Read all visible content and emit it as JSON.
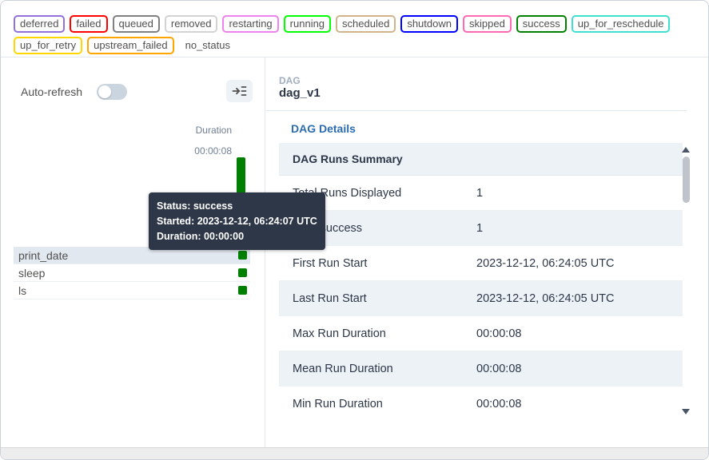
{
  "legend": {
    "badges": [
      {
        "label": "deferred",
        "color": "#9370DB"
      },
      {
        "label": "failed",
        "color": "#FF0000"
      },
      {
        "label": "queued",
        "color": "#808080"
      },
      {
        "label": "removed",
        "color": "#D3D3D3"
      },
      {
        "label": "restarting",
        "color": "#EE82EE"
      },
      {
        "label": "running",
        "color": "#00FF00"
      },
      {
        "label": "scheduled",
        "color": "#D2B48C"
      },
      {
        "label": "shutdown",
        "color": "#0000FF"
      },
      {
        "label": "skipped",
        "color": "#FF69B4"
      },
      {
        "label": "success",
        "color": "#008000"
      },
      {
        "label": "up_for_reschedule",
        "color": "#40E0D0"
      },
      {
        "label": "up_for_retry",
        "color": "#FFD700"
      },
      {
        "label": "upstream_failed",
        "color": "#FFA500"
      },
      {
        "label": "no_status",
        "color": "#FFFFFF"
      }
    ]
  },
  "grid_panel": {
    "auto_refresh_label": "Auto-refresh",
    "auto_refresh_on": false,
    "duration_axis_label": "Duration",
    "duration_axis_max": "00:00:08",
    "run_bar_color": "#008000",
    "tasks": [
      {
        "name": "print_date",
        "status": "success",
        "status_color": "#008000",
        "highlighted": true
      },
      {
        "name": "sleep",
        "status": "success",
        "status_color": "#008000",
        "highlighted": false
      },
      {
        "name": "ls",
        "status": "success",
        "status_color": "#008000",
        "highlighted": false
      }
    ]
  },
  "tooltip": {
    "status": "Status: success",
    "started": "Started: 2023-12-12, 06:24:07 UTC",
    "duration": "Duration: 00:00:00"
  },
  "details_panel": {
    "entity_type": "DAG",
    "dag_id": "dag_v1",
    "active_tab": "DAG Details",
    "summary_table": {
      "title": "DAG Runs Summary",
      "rows": [
        {
          "label": "Total Runs Displayed",
          "value": "1"
        },
        {
          "label": "Total success",
          "value": "1"
        },
        {
          "label": "First Run Start",
          "value": "2023-12-12, 06:24:05 UTC"
        },
        {
          "label": "Last Run Start",
          "value": "2023-12-12, 06:24:05 UTC"
        },
        {
          "label": "Max Run Duration",
          "value": "00:00:08"
        },
        {
          "label": "Mean Run Duration",
          "value": "00:00:08"
        },
        {
          "label": "Min Run Duration",
          "value": "00:00:08"
        }
      ]
    }
  }
}
